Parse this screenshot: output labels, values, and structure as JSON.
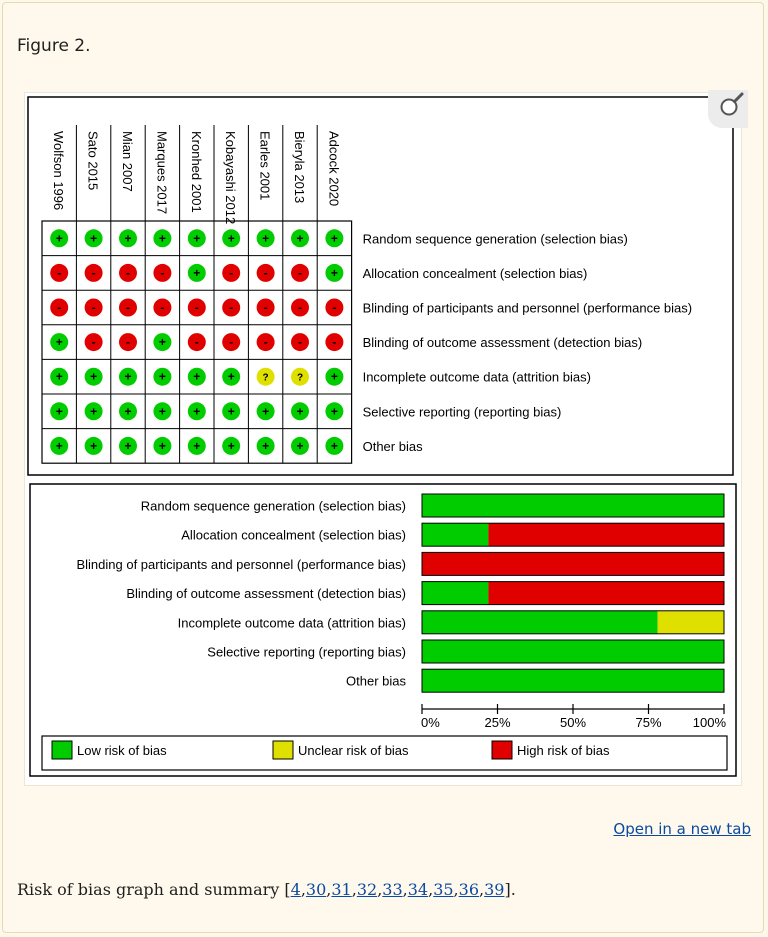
{
  "figure_label": "Figure 2.",
  "open_link": "Open in a new tab",
  "caption": {
    "text_before": "Risk of bias graph and summary [",
    "refs": [
      "4",
      "30",
      "31",
      "32",
      "33",
      "34",
      "35",
      "36",
      "39"
    ],
    "text_after": "]."
  },
  "colors": {
    "low": "#00cc00",
    "unclear": "#e0e000",
    "high": "#e00000",
    "page_bg": "#fdf8ea",
    "link": "#0b4aa2"
  },
  "icons": {
    "magnifier": "magnifier-icon",
    "low": "+",
    "unclear": "?",
    "high": "-"
  },
  "chart_data": [
    {
      "type": "table",
      "title": "",
      "studies": [
        "Wolfson 1996",
        "Sato 2015",
        "Mian 2007",
        "Marques 2017",
        "Kronhed 2001",
        "Kobayashi 2012",
        "Earles 2001",
        "Bieryla 2013",
        "Adcock 2020"
      ],
      "domains": [
        "Random sequence generation (selection bias)",
        "Allocation concealment (selection bias)",
        "Blinding of participants and personnel (performance bias)",
        "Blinding of outcome assessment (detection bias)",
        "Incomplete outcome data (attrition bias)",
        "Selective reporting (reporting bias)",
        "Other bias"
      ],
      "judgements": [
        [
          "+",
          "+",
          "+",
          "+",
          "+",
          "+",
          "+",
          "+",
          "+"
        ],
        [
          "-",
          "-",
          "-",
          "-",
          "+",
          "-",
          "-",
          "-",
          "+"
        ],
        [
          "-",
          "-",
          "-",
          "-",
          "-",
          "-",
          "-",
          "-",
          "-"
        ],
        [
          "+",
          "-",
          "-",
          "+",
          "-",
          "-",
          "-",
          "-",
          "-"
        ],
        [
          "+",
          "+",
          "+",
          "+",
          "+",
          "+",
          "?",
          "?",
          "+"
        ],
        [
          "+",
          "+",
          "+",
          "+",
          "+",
          "+",
          "+",
          "+",
          "+"
        ],
        [
          "+",
          "+",
          "+",
          "+",
          "+",
          "+",
          "+",
          "+",
          "+"
        ]
      ]
    },
    {
      "type": "bar",
      "orientation": "horizontal",
      "stacked": true,
      "categories": [
        "Random sequence generation (selection bias)",
        "Allocation concealment (selection bias)",
        "Blinding of participants and personnel (performance bias)",
        "Blinding of outcome assessment (detection bias)",
        "Incomplete outcome data (attrition bias)",
        "Selective reporting (reporting bias)",
        "Other bias"
      ],
      "series": [
        {
          "name": "Low risk of bias",
          "key": "low",
          "values": [
            100,
            22,
            0,
            22,
            78,
            100,
            100
          ]
        },
        {
          "name": "Unclear risk of bias",
          "key": "unclear",
          "values": [
            0,
            0,
            0,
            0,
            22,
            0,
            0
          ]
        },
        {
          "name": "High risk of bias",
          "key": "high",
          "values": [
            0,
            78,
            100,
            78,
            0,
            0,
            0
          ]
        }
      ],
      "xlim": [
        0,
        100
      ],
      "xticks": [
        "0%",
        "25%",
        "50%",
        "75%",
        "100%"
      ],
      "legend_position": "bottom"
    }
  ]
}
